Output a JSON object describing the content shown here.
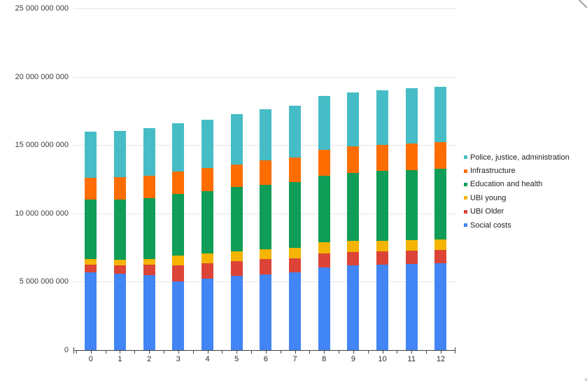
{
  "chart_data": {
    "type": "bar",
    "stacked": true,
    "title": "",
    "xlabel": "",
    "ylabel": "",
    "grid": true,
    "categories": [
      "0",
      "1",
      "2",
      "3",
      "4",
      "5",
      "6",
      "7",
      "8",
      "9",
      "10",
      "11",
      "12"
    ],
    "series": [
      {
        "name": "Social costs",
        "color": "#4285f4",
        "values": [
          5690000000,
          5560000000,
          5470000000,
          5030000000,
          5220000000,
          5420000000,
          5550000000,
          5710000000,
          6020000000,
          6190000000,
          6270000000,
          6320000000,
          6360000000
        ]
      },
      {
        "name": "UBI Older",
        "color": "#db4437",
        "values": [
          560000000,
          620000000,
          770000000,
          1190000000,
          1140000000,
          1080000000,
          1100000000,
          1000000000,
          1060000000,
          970000000,
          940000000,
          940000000,
          970000000
        ]
      },
      {
        "name": "UBI young",
        "color": "#f4b400",
        "values": [
          400000000,
          450000000,
          440000000,
          720000000,
          730000000,
          720000000,
          740000000,
          770000000,
          820000000,
          820000000,
          800000000,
          800000000,
          780000000
        ]
      },
      {
        "name": "Education and health",
        "color": "#0f9d58",
        "values": [
          4340000000,
          4400000000,
          4450000000,
          4490000000,
          4530000000,
          4700000000,
          4710000000,
          4830000000,
          4870000000,
          5000000000,
          5100000000,
          5130000000,
          5160000000
        ]
      },
      {
        "name": "Infrastructure",
        "color": "#ff6d01",
        "values": [
          1610000000,
          1610000000,
          1630000000,
          1610000000,
          1700000000,
          1680000000,
          1790000000,
          1790000000,
          1880000000,
          1920000000,
          1910000000,
          1930000000,
          1960000000
        ]
      },
      {
        "name": "Police, justice, administration",
        "color": "#46bdc6",
        "values": [
          3380000000,
          3400000000,
          3470000000,
          3580000000,
          3540000000,
          3680000000,
          3710000000,
          3780000000,
          3930000000,
          3960000000,
          3980000000,
          4050000000,
          4050000000
        ]
      }
    ],
    "legend": {
      "position": "right",
      "order_top_to_bottom": [
        5,
        4,
        3,
        2,
        1,
        0
      ]
    },
    "y_axis": {
      "min": 0,
      "max": 25000000000,
      "tick_step": 5000000000,
      "ticks": [
        {
          "value": 0,
          "label": "0"
        },
        {
          "value": 5000000000,
          "label": "5 000 000 000"
        },
        {
          "value": 10000000000,
          "label": "10 000 000 000"
        },
        {
          "value": 15000000000,
          "label": "15 000 000 000"
        },
        {
          "value": 20000000000,
          "label": "20 000 000 000"
        },
        {
          "value": 25000000000,
          "label": "25 000 000 000"
        }
      ]
    },
    "x_axis": {
      "tick_labels": [
        "0",
        "1",
        "2",
        "3",
        "4",
        "5",
        "6",
        "7",
        "8",
        "9",
        "10",
        "11",
        "12"
      ],
      "minor_ticks_between_categories": true
    }
  }
}
